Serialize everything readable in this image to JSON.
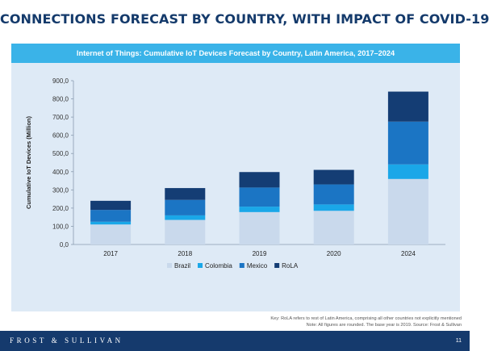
{
  "slide": {
    "title": "CONNECTIONS FORECAST BY COUNTRY, WITH IMPACT OF COVID-19",
    "page_number": "11"
  },
  "footer": {
    "brand": "FROST & SULLIVAN"
  },
  "notes": {
    "key": "Key: RoLA refers to rest of Latin America, comprising all other countries not explicitly mentioned",
    "note": "Note: All figures are rounded. The base year is 2019. Source: Frost & Sullivan"
  },
  "colors": {
    "title": "#143a6b",
    "panel_bg": "#deeaf6",
    "header_bg": "#3ab3e8",
    "footer_bg": "#153a6d"
  },
  "chart_data": {
    "type": "bar",
    "stacked": true,
    "title": "Internet of Things: Cumulative IoT Devices Forecast by Country, Latin America, 2017–2024",
    "ylabel": "Cumulative IoT Devices (Million)",
    "xlabel": "",
    "ylim": [
      0,
      900
    ],
    "yticks": [
      "0,0",
      "100,0",
      "200,0",
      "300,0",
      "400,0",
      "500,0",
      "600,0",
      "700,0",
      "800,0",
      "900,0"
    ],
    "grid": false,
    "legend_position": "bottom",
    "categories": [
      "2017",
      "2018",
      "2019",
      "2020",
      "2024"
    ],
    "series": [
      {
        "name": "Brazil",
        "color": "#c9d9ec",
        "values": [
          110,
          135,
          178,
          185,
          360
        ]
      },
      {
        "name": "Colombia",
        "color": "#1aa7e8",
        "values": [
          15,
          25,
          30,
          35,
          80
        ]
      },
      {
        "name": "Mexico",
        "color": "#1b75c4",
        "values": [
          65,
          85,
          105,
          110,
          235
        ]
      },
      {
        "name": "RoLA",
        "color": "#143d74",
        "values": [
          50,
          65,
          85,
          80,
          165
        ]
      }
    ]
  }
}
